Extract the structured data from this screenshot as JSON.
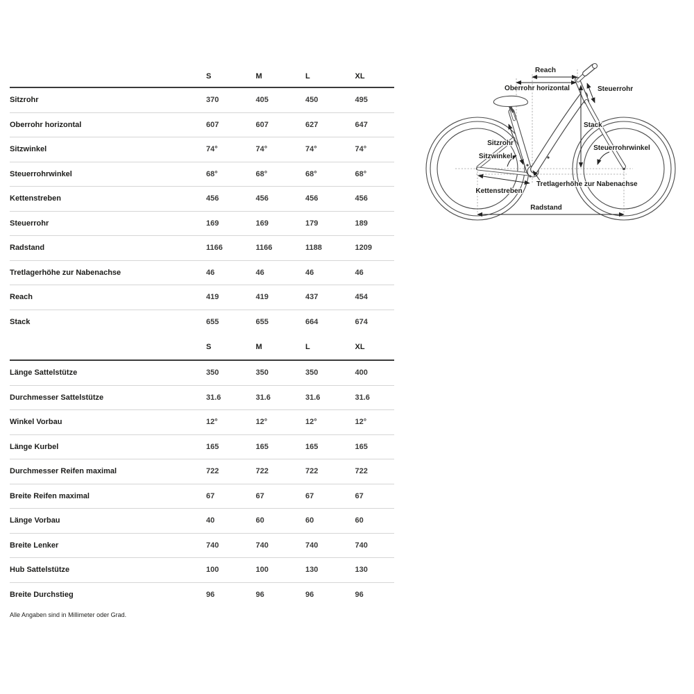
{
  "colors": {
    "text": "#1d1d1b",
    "value_text": "#3a3a39",
    "line_art": "#4a4a4a",
    "separator": "#d5d5d5",
    "header_rule": "#3a3a3a",
    "background": "#ffffff"
  },
  "tables": [
    {
      "name": "frame-geometry",
      "columns": [
        "S",
        "M",
        "L",
        "XL"
      ],
      "rows": [
        {
          "label": "Sitzrohr",
          "values": [
            "370",
            "405",
            "450",
            "495"
          ]
        },
        {
          "label": "Oberrohr horizontal",
          "values": [
            "607",
            "607",
            "627",
            "647"
          ]
        },
        {
          "label": "Sitzwinkel",
          "values": [
            "74°",
            "74°",
            "74°",
            "74°"
          ]
        },
        {
          "label": "Steuerrohrwinkel",
          "values": [
            "68°",
            "68°",
            "68°",
            "68°"
          ]
        },
        {
          "label": "Kettenstreben",
          "values": [
            "456",
            "456",
            "456",
            "456"
          ]
        },
        {
          "label": "Steuerrohr",
          "values": [
            "169",
            "169",
            "179",
            "189"
          ]
        },
        {
          "label": "Radstand",
          "values": [
            "1166",
            "1166",
            "1188",
            "1209"
          ]
        },
        {
          "label": "Tretlagerhöhe zur Nabenachse",
          "values": [
            "46",
            "46",
            "46",
            "46"
          ]
        },
        {
          "label": "Reach",
          "values": [
            "419",
            "419",
            "437",
            "454"
          ]
        },
        {
          "label": "Stack",
          "values": [
            "655",
            "655",
            "664",
            "674"
          ]
        }
      ]
    },
    {
      "name": "components-geometry",
      "columns": [
        "S",
        "M",
        "L",
        "XL"
      ],
      "rows": [
        {
          "label": "Länge Sattelstütze",
          "values": [
            "350",
            "350",
            "350",
            "400"
          ]
        },
        {
          "label": "Durchmesser Sattelstütze",
          "values": [
            "31.6",
            "31.6",
            "31.6",
            "31.6"
          ]
        },
        {
          "label": "Winkel Vorbau",
          "values": [
            "12°",
            "12°",
            "12°",
            "12°"
          ]
        },
        {
          "label": "Länge Kurbel",
          "values": [
            "165",
            "165",
            "165",
            "165"
          ]
        },
        {
          "label": "Durchmesser Reifen maximal",
          "values": [
            "722",
            "722",
            "722",
            "722"
          ]
        },
        {
          "label": "Breite Reifen maximal",
          "values": [
            "67",
            "67",
            "67",
            "67"
          ]
        },
        {
          "label": "Länge Vorbau",
          "values": [
            "40",
            "60",
            "60",
            "60"
          ]
        },
        {
          "label": "Breite Lenker",
          "values": [
            "740",
            "740",
            "740",
            "740"
          ]
        },
        {
          "label": "Hub Sattelstütze",
          "values": [
            "100",
            "100",
            "130",
            "130"
          ]
        },
        {
          "label": "Breite Durchstieg",
          "values": [
            "96",
            "96",
            "96",
            "96"
          ]
        }
      ]
    }
  ],
  "footnote": "Alle Angaben sind in Millimeter oder Grad.",
  "diagram": {
    "labels": {
      "reach": "Reach",
      "oberrohr": "Oberrohr horizontal",
      "steuerrohr": "Steuerrohr",
      "stack": "Stack",
      "steuerrohrwinkel": "Steuerrohrwinkel",
      "sitzrohr": "Sitzrohr",
      "sitzwinkel": "Sitzwinkel",
      "tretlagerhoehe": "Tretlagerhöhe zur Nabenachse",
      "kettenstreben": "Kettenstreben",
      "radstand": "Radstand"
    }
  }
}
